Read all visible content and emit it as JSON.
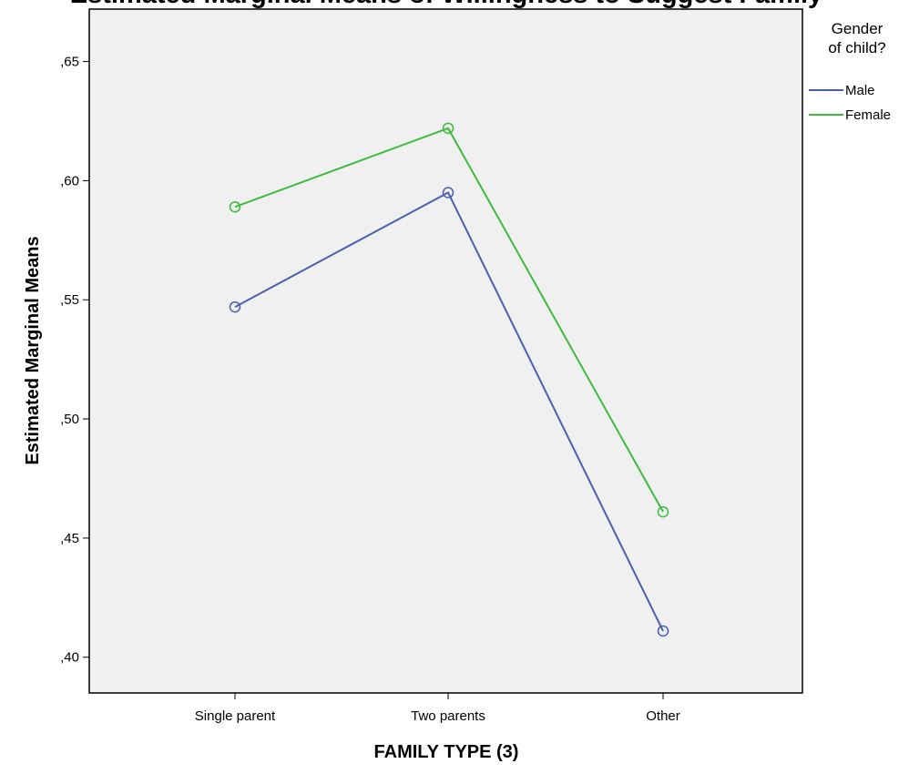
{
  "chart_data": {
    "type": "line",
    "title": "Estimated Marginal Means of Willingness to Suggest Family",
    "xlabel": "FAMILY TYPE (3)",
    "ylabel": "Estimated Marginal Means",
    "categories": [
      "Single parent",
      "Two parents",
      "Other"
    ],
    "ylim": [
      0.385,
      0.672
    ],
    "yticks": [
      0.4,
      0.45,
      0.5,
      0.55,
      0.6,
      0.65
    ],
    "ytick_labels": [
      ",40",
      ",45",
      ",50",
      ",55",
      ",60",
      ",65"
    ],
    "grid": false,
    "legend": {
      "title": "Gender of child?",
      "title_lines": [
        "Gender",
        "of child?"
      ],
      "placement": "right"
    },
    "series": [
      {
        "name": "Male",
        "color": "#4a5fb0",
        "values": [
          0.547,
          0.595,
          0.411
        ]
      },
      {
        "name": "Female",
        "color": "#3dbb3d",
        "values": [
          0.589,
          0.622,
          0.461
        ]
      }
    ],
    "plot_background": "#f0f0f0"
  }
}
